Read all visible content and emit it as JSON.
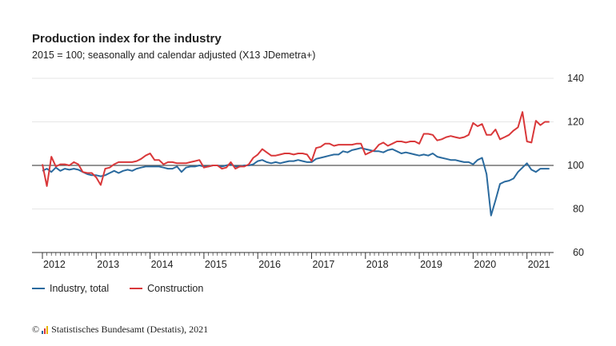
{
  "header": {
    "title": "Production index for the industry",
    "subtitle": "2015 = 100; seasonally and calendar adjusted (X13 JDemetra+)"
  },
  "source": {
    "copyright": "©",
    "text": "Statistisches Bundesamt (Destatis), 2021"
  },
  "colors": {
    "industry": "#2a6a9e",
    "construction": "#d9383a",
    "baseline": "#555555",
    "grid": "#e6e6e6"
  },
  "chart_data": {
    "type": "line",
    "title": "Production index for the industry",
    "subtitle": "2015 = 100; seasonally and calendar adjusted (X13 JDemetra+)",
    "xlabel": "",
    "ylabel": "",
    "x_start": "2012-01",
    "x_ticks": [
      "2012",
      "2013",
      "2014",
      "2015",
      "2016",
      "2017",
      "2018",
      "2019",
      "2020",
      "2021"
    ],
    "y_ticks": [
      "60",
      "80",
      "100",
      "120",
      "140"
    ],
    "ylim": [
      60,
      140
    ],
    "grid": true,
    "reference_line": 100,
    "legend_position": "bottom-left",
    "series": [
      {
        "name": "Industry, total",
        "color": "#2a6a9e",
        "values": [
          97.5,
          98.5,
          97.0,
          99.0,
          97.5,
          98.5,
          98.0,
          98.5,
          98.0,
          97.0,
          96.0,
          95.5,
          95.5,
          95.0,
          95.5,
          96.5,
          97.5,
          96.5,
          97.5,
          98.0,
          97.5,
          98.5,
          99.0,
          99.5,
          99.5,
          99.5,
          99.5,
          99.0,
          98.5,
          98.5,
          99.5,
          97.0,
          99.0,
          99.5,
          99.5,
          100.0,
          99.5,
          99.5,
          100.0,
          100.0,
          99.5,
          100.0,
          100.5,
          99.5,
          99.5,
          100.0,
          100.0,
          100.5,
          102.0,
          102.5,
          101.5,
          101.0,
          101.5,
          101.0,
          101.5,
          102.0,
          102.0,
          102.5,
          102.0,
          101.5,
          101.5,
          103.0,
          103.5,
          104.0,
          104.5,
          105.0,
          105.0,
          106.5,
          106.0,
          107.0,
          107.5,
          108.0,
          107.5,
          107.0,
          106.5,
          106.5,
          106.0,
          107.0,
          107.5,
          106.5,
          105.5,
          106.0,
          105.5,
          105.0,
          104.5,
          105.0,
          104.5,
          105.5,
          104.0,
          103.5,
          103.0,
          102.5,
          102.5,
          102.0,
          101.5,
          101.5,
          100.5,
          102.5,
          103.5,
          96.0,
          77.0,
          84.0,
          91.5,
          92.5,
          93.0,
          94.0,
          97.0,
          99.0,
          101.0,
          98.0,
          97.0,
          98.5,
          98.5,
          98.5
        ]
      },
      {
        "name": "Construction",
        "color": "#d9383a",
        "values": [
          100.5,
          90.5,
          104.0,
          99.5,
          100.5,
          100.5,
          100.0,
          101.5,
          100.5,
          97.0,
          96.5,
          96.5,
          94.5,
          91.0,
          98.5,
          99.0,
          100.5,
          101.5,
          101.5,
          101.5,
          101.5,
          102.0,
          103.0,
          104.5,
          105.5,
          102.5,
          102.5,
          100.5,
          101.5,
          101.5,
          101.0,
          101.0,
          101.0,
          101.5,
          102.0,
          102.5,
          99.0,
          99.5,
          100.0,
          100.0,
          98.5,
          99.0,
          101.5,
          98.5,
          99.5,
          99.5,
          100.5,
          103.5,
          105.0,
          107.5,
          106.0,
          104.5,
          104.5,
          105.0,
          105.5,
          105.5,
          105.0,
          105.5,
          105.5,
          105.0,
          102.0,
          108.0,
          108.5,
          110.0,
          110.0,
          109.0,
          109.5,
          109.5,
          109.5,
          109.5,
          110.0,
          110.0,
          105.0,
          106.0,
          107.0,
          109.5,
          110.5,
          109.0,
          110.0,
          111.0,
          111.0,
          110.5,
          111.0,
          111.0,
          110.0,
          114.5,
          114.5,
          114.0,
          111.5,
          112.0,
          113.0,
          113.5,
          113.0,
          112.5,
          113.0,
          114.0,
          119.5,
          118.0,
          119.0,
          114.0,
          114.0,
          116.5,
          112.0,
          113.0,
          114.0,
          116.0,
          117.5,
          124.5,
          111.0,
          110.5,
          120.5,
          118.5,
          120.0,
          120.0
        ]
      }
    ]
  }
}
